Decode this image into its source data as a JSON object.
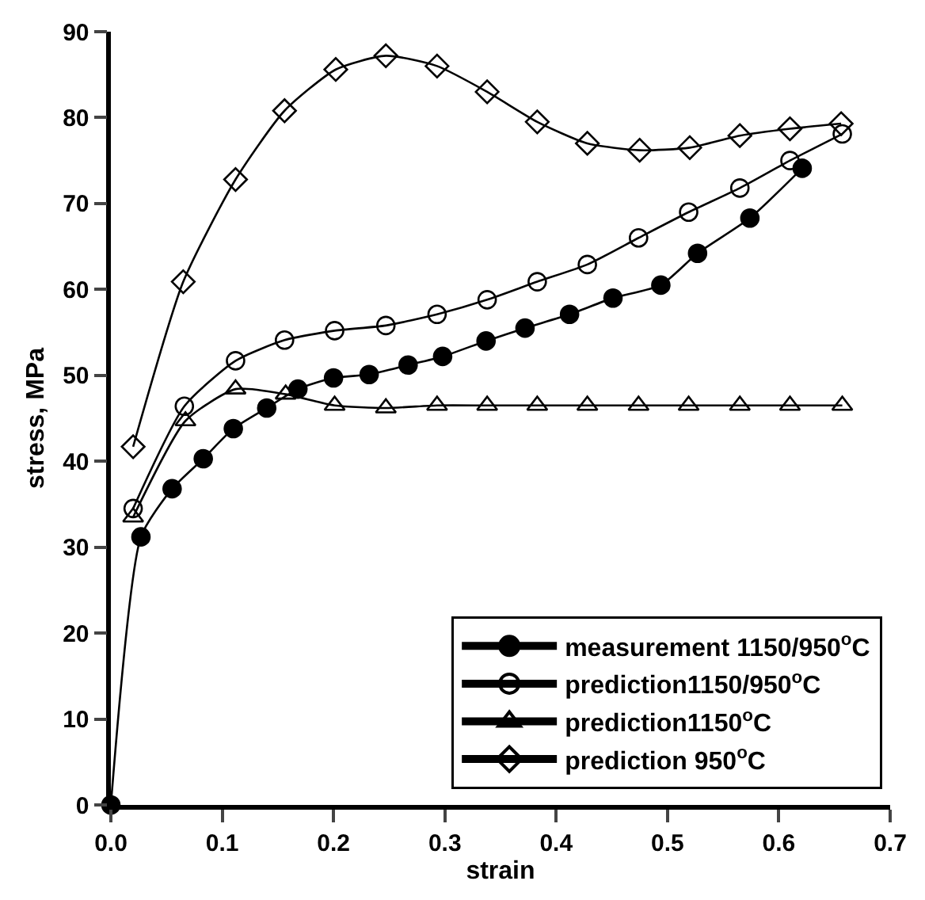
{
  "chart_data": {
    "type": "line",
    "xlabel": "strain",
    "ylabel": "stress, MPa",
    "xlim": [
      0,
      0.7
    ],
    "ylim": [
      0,
      90
    ],
    "xticks": [
      {
        "value": 0,
        "label": "0.0"
      },
      {
        "value": 0.1,
        "label": "0.1"
      },
      {
        "value": 0.2,
        "label": "0.2"
      },
      {
        "value": 0.3,
        "label": "0.3"
      },
      {
        "value": 0.4,
        "label": "0.4"
      },
      {
        "value": 0.5,
        "label": "0.5"
      },
      {
        "value": 0.6,
        "label": "0.6"
      },
      {
        "value": 0.7,
        "label": "0.7"
      }
    ],
    "yticks": [
      0,
      10,
      20,
      30,
      40,
      50,
      60,
      70,
      80,
      90
    ],
    "grid": false,
    "legend": "bottom right",
    "line_style": "solid",
    "marker": "circle",
    "series": [
      {
        "name": "measurement 1150/950$^{o}$C",
        "color": "#000000",
        "x": [
          0,
          0.027,
          0.055,
          0.083,
          0.11,
          0.14,
          0.168,
          0.2,
          0.232,
          0.267,
          0.298,
          0.337,
          0.372,
          0.412,
          0.451,
          0.494,
          0.527,
          0.574,
          0.621
        ],
        "values": [
          0,
          31.2,
          36.8,
          40.3,
          43.8,
          46.2,
          48.4,
          49.7,
          50.1,
          51.2,
          52.2,
          54.0,
          55.5,
          57.1,
          59.0,
          60.5,
          64.2,
          68.3,
          74.1
        ]
      },
      {
        "name": "prediction1150/950$^{o}$C",
        "color": "#000000",
        "marker": "circle",
        "x": [
          0.02,
          0.066,
          0.112,
          0.156,
          0.201,
          0.247,
          0.293,
          0.338,
          0.383,
          0.428,
          0.474,
          0.519,
          0.565,
          0.61,
          0.657
        ],
        "values": [
          34.5,
          46.4,
          51.7,
          54.1,
          55.2,
          55.8,
          57.1,
          58.8,
          60.9,
          62.9,
          66.0,
          69.0,
          71.8,
          75.0,
          78.1
        ]
      },
      {
        "name": "prediction1150$^{o}$C",
        "color": "#000000",
        "marker": "triangle",
        "x": [
          0.02,
          0.067,
          0.112,
          0.157,
          0.201,
          0.247,
          0.293,
          0.338,
          0.383,
          0.428,
          0.474,
          0.519,
          0.565,
          0.61,
          0.657
        ],
        "values": [
          33.5,
          44.7,
          48.4,
          47.8,
          46.5,
          46.2,
          46.5,
          46.5,
          46.5,
          46.5,
          46.5,
          46.5,
          46.5,
          46.5,
          46.5
        ]
      },
      {
        "name": "prediction 950$^{o}$C",
        "color": "#000000",
        "marker": "diamond",
        "x": [
          0.02,
          0.065,
          0.112,
          0.156,
          0.202,
          0.247,
          0.293,
          0.338,
          0.383,
          0.428,
          0.475,
          0.52,
          0.565,
          0.61,
          0.656
        ],
        "values": [
          41.7,
          60.9,
          72.8,
          80.8,
          85.6,
          87.2,
          86.0,
          83.0,
          79.5,
          77.0,
          76.2,
          76.5,
          77.9,
          78.7,
          79.3
        ]
      }
    ]
  }
}
